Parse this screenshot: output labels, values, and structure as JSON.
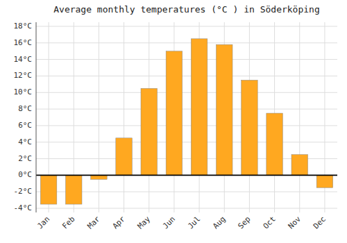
{
  "chart_data": {
    "type": "bar",
    "title": "Average monthly temperatures (°C ) in Söderköping",
    "categories": [
      "Jan",
      "Feb",
      "Mar",
      "Apr",
      "May",
      "Jun",
      "Jul",
      "Aug",
      "Sep",
      "Oct",
      "Nov",
      "Dec"
    ],
    "values": [
      -3.5,
      -3.5,
      -0.5,
      4.5,
      10.5,
      15.0,
      16.5,
      15.8,
      11.5,
      7.5,
      2.5,
      -1.5
    ],
    "color": "#FFA820",
    "ylim": [
      -4.5,
      18.5
    ],
    "yticks": [
      {
        "value": -4,
        "label": "-4°C"
      },
      {
        "value": -2,
        "label": "-2°C"
      },
      {
        "value": 0,
        "label": "0°C"
      },
      {
        "value": 2,
        "label": "2°C"
      },
      {
        "value": 4,
        "label": "4°C"
      },
      {
        "value": 6,
        "label": "6°C"
      },
      {
        "value": 8,
        "label": "8°C"
      },
      {
        "value": 10,
        "label": "10°C"
      },
      {
        "value": 12,
        "label": "12°C"
      },
      {
        "value": 14,
        "label": "14°C"
      },
      {
        "value": 16,
        "label": "16°C"
      },
      {
        "value": 18,
        "label": "18°C"
      }
    ],
    "grid": true
  }
}
